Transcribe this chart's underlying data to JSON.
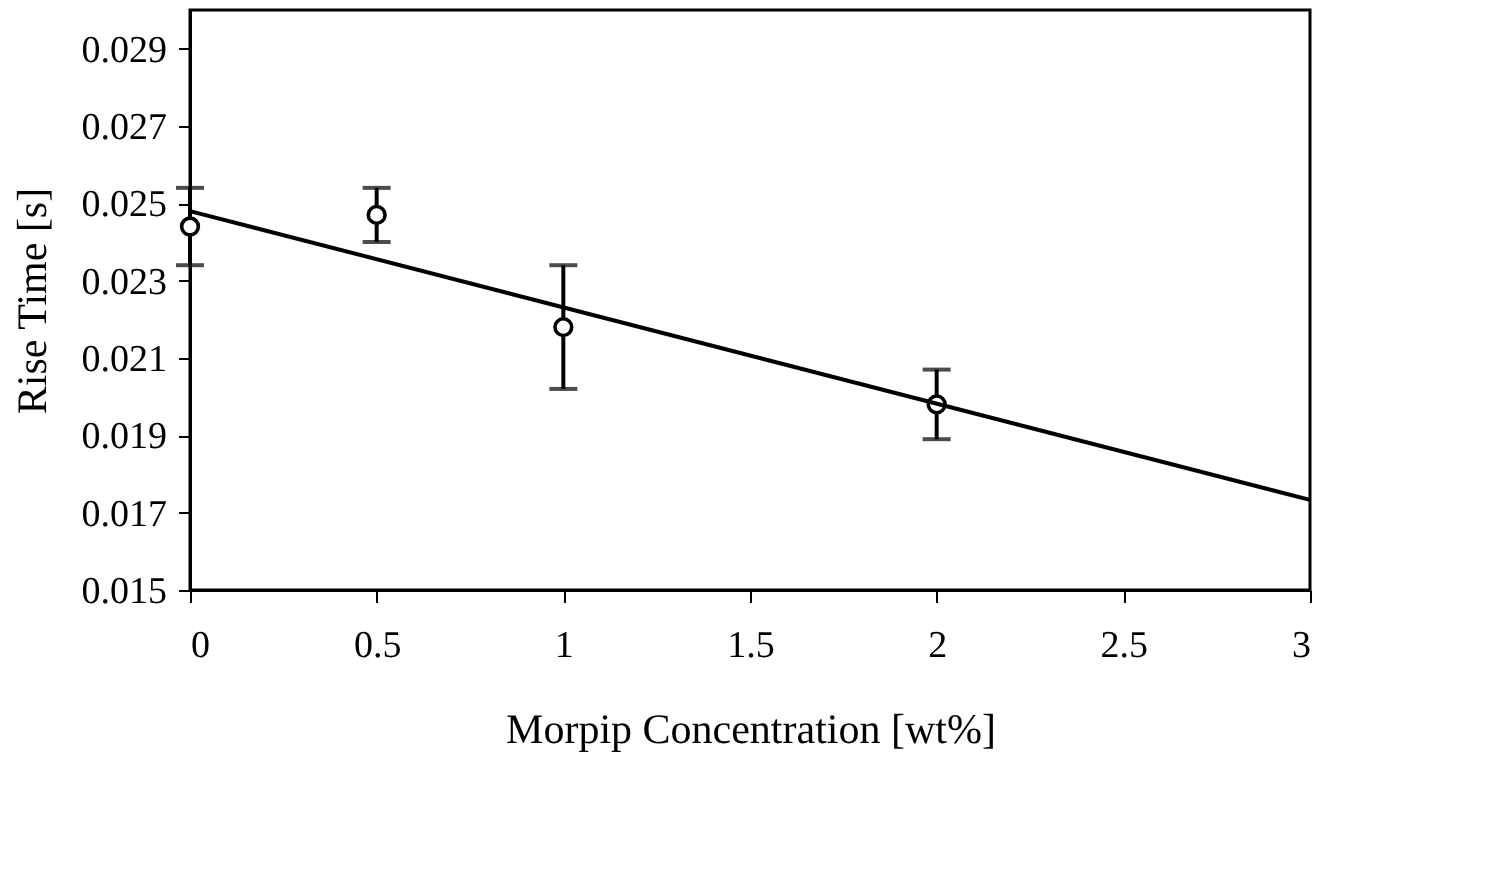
{
  "chart_data": {
    "type": "scatter",
    "xlabel": "Morpip Concentration [wt%]",
    "ylabel": "Rise Time [s]",
    "xlim": [
      0,
      3
    ],
    "xticks": [
      0,
      0.5,
      1,
      1.5,
      2,
      2.5,
      3
    ],
    "ylim": [
      0.015,
      0.03
    ],
    "yticks": [
      0.015,
      0.017,
      0.019,
      0.021,
      0.023,
      0.025,
      0.027,
      0.029
    ],
    "grid": false,
    "series": [
      {
        "marker": "circle",
        "color": "#000000",
        "x": [
          0,
          0.5,
          1,
          2
        ],
        "values": [
          0.0244,
          0.0247,
          0.0218,
          0.0198
        ],
        "errors": [
          0.001,
          0.0007,
          0.0016,
          0.0009
        ]
      },
      {
        "type": "line",
        "line_style": "solid",
        "color": "#000000",
        "x": [
          0,
          3
        ],
        "values": [
          0.0248,
          0.01733
        ]
      }
    ]
  }
}
